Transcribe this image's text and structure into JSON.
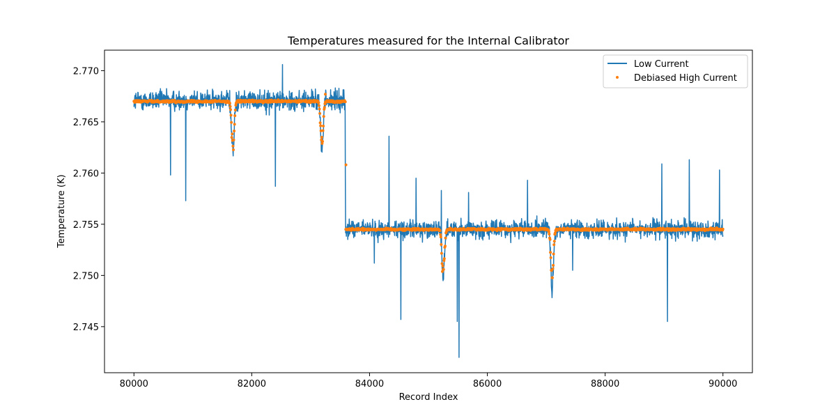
{
  "chart_data": {
    "type": "line",
    "title": "Temperatures measured for the Internal Calibrator",
    "xlabel": "Record Index",
    "ylabel": "Temperature (K)",
    "xlim": [
      79500,
      90500
    ],
    "ylim": [
      2.7405,
      2.772
    ],
    "xticks": [
      80000,
      82000,
      84000,
      86000,
      88000,
      90000
    ],
    "xtick_labels": [
      "80000",
      "82000",
      "84000",
      "86000",
      "88000",
      "90000"
    ],
    "yticks": [
      2.745,
      2.75,
      2.755,
      2.76,
      2.765,
      2.77
    ],
    "ytick_labels": [
      "2.745",
      "2.750",
      "2.755",
      "2.760",
      "2.765",
      "2.770"
    ],
    "grid": false,
    "legend_position": "top-right",
    "x_range": [
      80000,
      90000
    ],
    "series": [
      {
        "name": "Low Current",
        "style": "line",
        "color": "#1f77b4",
        "levels": [
          {
            "x_start": 80000,
            "x_end": 83590,
            "mean": 2.7671,
            "band_min": 2.7655,
            "band_max": 2.7685
          },
          {
            "x_start": 83590,
            "x_end": 90000,
            "mean": 2.7545,
            "band_min": 2.7535,
            "band_max": 2.7562
          }
        ],
        "dips": [
          {
            "x": 81680,
            "min": 2.7615
          },
          {
            "x": 83190,
            "min": 2.7618
          },
          {
            "x": 85250,
            "min": 2.7495
          },
          {
            "x": 87100,
            "min": 2.748
          }
        ],
        "spikes": [
          {
            "x": 80620,
            "y": 2.7598
          },
          {
            "x": 80880,
            "y": 2.7573
          },
          {
            "x": 82400,
            "y": 2.7587
          },
          {
            "x": 82520,
            "y": 2.7706
          },
          {
            "x": 83590,
            "y": 2.7595
          },
          {
            "x": 84080,
            "y": 2.7512
          },
          {
            "x": 84330,
            "y": 2.7636
          },
          {
            "x": 84530,
            "y": 2.7457
          },
          {
            "x": 84790,
            "y": 2.7595
          },
          {
            "x": 85220,
            "y": 2.7583
          },
          {
            "x": 85490,
            "y": 2.7455
          },
          {
            "x": 85520,
            "y": 2.742
          },
          {
            "x": 85680,
            "y": 2.7581
          },
          {
            "x": 86680,
            "y": 2.7593
          },
          {
            "x": 87450,
            "y": 2.7505
          },
          {
            "x": 88960,
            "y": 2.7609
          },
          {
            "x": 89060,
            "y": 2.7455
          },
          {
            "x": 89430,
            "y": 2.7613
          },
          {
            "x": 89940,
            "y": 2.7603
          }
        ]
      },
      {
        "name": "Debiased High Current",
        "style": "scatter",
        "color": "#ff7f0e",
        "levels": [
          {
            "x_start": 80000,
            "x_end": 83590,
            "mean": 2.767
          },
          {
            "x_start": 83590,
            "x_end": 90000,
            "mean": 2.7545
          }
        ],
        "dips": [
          {
            "x": 81680,
            "min": 2.7617
          },
          {
            "x": 83190,
            "min": 2.7623
          },
          {
            "x": 85250,
            "min": 2.7493
          },
          {
            "x": 87100,
            "min": 2.7493
          }
        ],
        "outliers": [
          {
            "x": 83600,
            "y": 2.7608
          },
          {
            "x": 83250,
            "y": 2.7677
          }
        ]
      }
    ]
  }
}
